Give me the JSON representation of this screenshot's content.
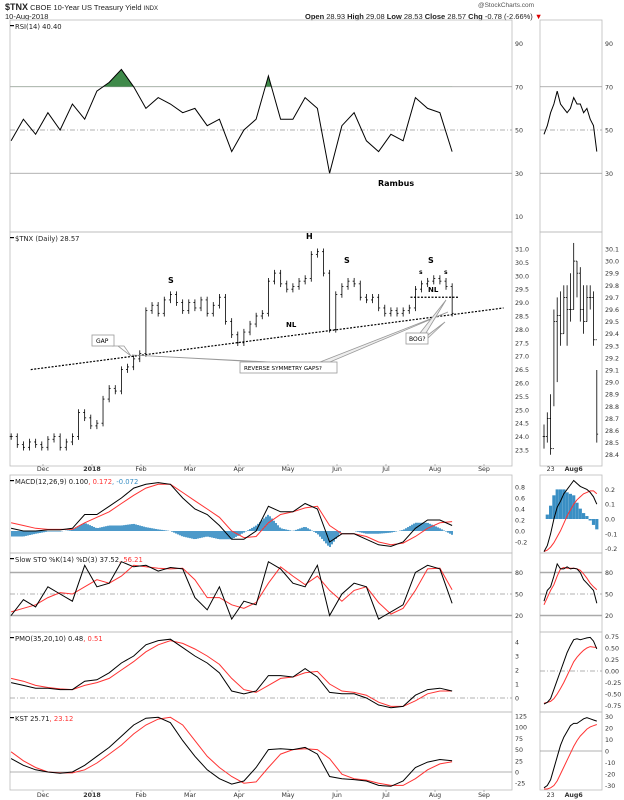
{
  "header": {
    "symbol": "$TNX",
    "name": "CBOE 10-Year US Treasury Yield",
    "exchange": "INDX",
    "date": "10-Aug-2018",
    "brand": "@StockCharts.com",
    "open_label": "Open",
    "open": "28.93",
    "high_label": "High",
    "high": "29.08",
    "low_label": "Low",
    "low": "28.53",
    "close_label": "Close",
    "close": "28.57",
    "chg_label": "Chg",
    "chg": "-0.78 (-2.66%)",
    "down_arrow": "▼"
  },
  "colors": {
    "black": "#000000",
    "red": "#ff3333",
    "hist": "#3a8fc4",
    "grid": "#999999",
    "rsi_fill": "#3f8a4a"
  },
  "annotations": {
    "rambus": "Rambus",
    "H": "H",
    "S_left": "S",
    "S_right_main": "S",
    "S_right": "S",
    "s_small_left": "s",
    "s_small_right": "s",
    "NL": "NL",
    "NL_small": "NL",
    "gap": "GAP",
    "reverse": "REVERSE SYMMETRY GAPS?",
    "bog": "BOG?"
  },
  "x_axis": {
    "labels": [
      {
        "m": 0,
        "t": "Dec"
      },
      {
        "m": 1,
        "t": "2018",
        "bold": true
      },
      {
        "m": 2,
        "t": "Feb"
      },
      {
        "m": 3,
        "t": "Mar"
      },
      {
        "m": 4,
        "t": "Apr"
      },
      {
        "m": 5,
        "t": "May"
      },
      {
        "m": 6,
        "t": "Jun"
      },
      {
        "m": 7,
        "t": "Jul"
      },
      {
        "m": 8,
        "t": "Aug"
      },
      {
        "m": 9,
        "t": "Sep"
      }
    ],
    "right_labels": [
      {
        "i": 2,
        "t": "23"
      },
      {
        "i": 9,
        "t": "Aug6",
        "bold": true
      }
    ]
  },
  "chart_data": [
    {
      "type": "line",
      "key": "rsi",
      "title": "RSI(14) 40.40",
      "yticks": [
        90,
        70,
        50,
        30,
        10
      ],
      "yticks_right": [
        90,
        70,
        50,
        30
      ],
      "ref_lines": [
        {
          "v": 70,
          "style": "solid"
        },
        {
          "v": 50,
          "style": "dashdot"
        },
        {
          "v": 30,
          "style": "solid"
        }
      ],
      "x_start": -0.65,
      "x_step": 0.25,
      "series": [
        {
          "name": "RSI",
          "color": "#000000",
          "values": [
            45,
            55,
            48,
            58,
            50,
            62,
            55,
            68,
            72,
            78,
            70,
            60,
            65,
            62,
            58,
            60,
            52,
            55,
            40,
            50,
            55,
            75,
            55,
            55,
            65,
            60,
            30,
            52,
            58,
            45,
            40,
            48,
            45,
            65,
            60,
            58,
            40
          ]
        }
      ],
      "right_series": [
        {
          "name": "RSI",
          "color": "#000000",
          "values": [
            48,
            52,
            58,
            62,
            68,
            62,
            60,
            58,
            60,
            65,
            62,
            62,
            58,
            60,
            55,
            52,
            40
          ]
        }
      ]
    },
    {
      "type": "ohlc",
      "key": "price",
      "title": "$TNX (Daily) 28.57",
      "yticks": [
        "31.0",
        "30.5",
        "30.0",
        "29.5",
        "29.0",
        "28.5",
        "28.0",
        "27.5",
        "27.0",
        "26.5",
        "26.0",
        "25.5",
        "25.0",
        "24.5",
        "24.0",
        "23.5"
      ],
      "yticks_right": [
        "30.1",
        "30.0",
        "29.9",
        "29.8",
        "29.7",
        "29.6",
        "29.5",
        "29.4",
        "29.3",
        "29.2",
        "29.1",
        "29.0",
        "28.9",
        "28.8",
        "28.7",
        "28.6",
        "28.5",
        "28.4"
      ],
      "x_start": -0.65,
      "x_step": 0.125,
      "closes": [
        24.0,
        23.7,
        23.6,
        23.8,
        23.7,
        23.6,
        23.9,
        24.0,
        23.6,
        23.8,
        24.0,
        24.9,
        24.7,
        24.4,
        24.5,
        25.4,
        25.8,
        25.7,
        26.5,
        26.6,
        26.9,
        27.1,
        28.7,
        28.9,
        28.6,
        29.1,
        29.3,
        29.0,
        28.7,
        29.0,
        28.8,
        29.1,
        28.6,
        28.9,
        29.2,
        28.3,
        27.8,
        27.5,
        27.9,
        28.2,
        28.5,
        28.6,
        29.8,
        30.1,
        29.7,
        29.5,
        29.6,
        29.8,
        29.9,
        30.8,
        30.9,
        30.1,
        28.0,
        29.3,
        29.6,
        29.8,
        29.7,
        29.2,
        29.1,
        29.2,
        28.8,
        28.6,
        28.7,
        28.6,
        28.7,
        28.8,
        29.5,
        29.7,
        29.8,
        29.9,
        29.8,
        29.6,
        28.6
      ],
      "neckline": {
        "from": [
          -0.25,
          26.5
        ],
        "to": [
          9.4,
          28.8
        ]
      },
      "small_neckline": {
        "from": [
          7.5,
          29.2
        ],
        "to": [
          8.5,
          29.2
        ]
      },
      "right_bars": [
        [
          28.45,
          28.65,
          28.55
        ],
        [
          28.5,
          28.75,
          28.7
        ],
        [
          28.4,
          28.9,
          28.45
        ],
        [
          28.8,
          29.6,
          29.5
        ],
        [
          29.0,
          29.7,
          29.55
        ],
        [
          29.3,
          29.75,
          29.4
        ],
        [
          29.4,
          29.8,
          29.7
        ],
        [
          29.3,
          29.8,
          29.6
        ],
        [
          29.5,
          29.9,
          29.6
        ],
        [
          29.6,
          30.15,
          30.0
        ],
        [
          29.7,
          30.0,
          29.9
        ],
        [
          29.5,
          29.95,
          29.6
        ],
        [
          29.4,
          29.8,
          29.5
        ],
        [
          29.5,
          29.8,
          29.7
        ],
        [
          29.6,
          29.8,
          29.7
        ],
        [
          29.3,
          29.75,
          29.35
        ],
        [
          28.5,
          29.1,
          28.57
        ]
      ]
    },
    {
      "type": "line",
      "key": "macd",
      "title_parts": [
        "MACD(12,26,9) 0.100",
        ", 0.172",
        ", -0.072"
      ],
      "yticks": [
        "0.8",
        "0.6",
        "0.4",
        "0.2",
        "0.0",
        "-0.2"
      ],
      "yticks_right": [
        "0.2",
        "0.1",
        "0.0",
        "-0.1",
        "-0.2"
      ],
      "x_start": -0.65,
      "x_step": 0.25,
      "series": [
        {
          "name": "MACD",
          "color": "#000000",
          "values": [
            0.05,
            0.0,
            0.0,
            0.02,
            0.02,
            0.05,
            0.3,
            0.3,
            0.45,
            0.6,
            0.78,
            0.85,
            0.88,
            0.85,
            0.6,
            0.4,
            0.3,
            0.1,
            -0.15,
            -0.15,
            0.0,
            0.45,
            0.35,
            0.35,
            0.5,
            0.4,
            -0.2,
            -0.05,
            -0.05,
            -0.15,
            -0.25,
            -0.28,
            -0.2,
            0.05,
            0.2,
            0.2,
            0.1
          ]
        },
        {
          "name": "Signal",
          "color": "#ff3333",
          "values": [
            0.15,
            0.1,
            0.05,
            0.03,
            0.03,
            0.03,
            0.15,
            0.25,
            0.35,
            0.5,
            0.65,
            0.78,
            0.85,
            0.85,
            0.7,
            0.55,
            0.4,
            0.25,
            0.0,
            -0.12,
            -0.1,
            0.15,
            0.3,
            0.35,
            0.42,
            0.45,
            0.1,
            -0.05,
            -0.05,
            -0.1,
            -0.2,
            -0.25,
            -0.22,
            -0.1,
            0.05,
            0.15,
            0.17
          ]
        }
      ],
      "right_series": [
        {
          "name": "MACD",
          "color": "#000000",
          "values": [
            -0.22,
            -0.18,
            -0.1,
            0.0,
            0.08,
            0.12,
            0.17,
            0.2,
            0.23,
            0.26,
            0.24,
            0.22,
            0.21,
            0.2,
            0.18,
            0.15,
            0.1
          ]
        },
        {
          "name": "Signal",
          "color": "#ff3333",
          "values": [
            -0.22,
            -0.21,
            -0.19,
            -0.16,
            -0.12,
            -0.08,
            -0.03,
            0.02,
            0.06,
            0.1,
            0.13,
            0.15,
            0.17,
            0.18,
            0.19,
            0.19,
            0.17
          ]
        }
      ],
      "histogram": "MACD minus Signal"
    },
    {
      "type": "line",
      "key": "sto",
      "title_parts": [
        "Slow STO %K(14) %D(3) 37.52",
        ", 56.21"
      ],
      "yticks": [
        "80",
        "50",
        "20"
      ],
      "yticks_right": [
        "80",
        "50",
        "20"
      ],
      "ref_lines": [
        {
          "v": 80,
          "style": "thick"
        },
        {
          "v": 50,
          "style": "dashdot"
        },
        {
          "v": 20,
          "style": "thick"
        }
      ],
      "x_start": -0.65,
      "x_step": 0.25,
      "series": [
        {
          "name": "%K",
          "color": "#000000",
          "values": [
            20,
            42,
            32,
            60,
            50,
            40,
            90,
            60,
            65,
            95,
            88,
            90,
            82,
            87,
            85,
            45,
            28,
            60,
            15,
            40,
            35,
            95,
            85,
            65,
            60,
            90,
            20,
            50,
            65,
            60,
            15,
            25,
            35,
            80,
            90,
            85,
            37
          ]
        },
        {
          "name": "%D",
          "color": "#ff3333",
          "values": [
            25,
            30,
            35,
            45,
            52,
            50,
            60,
            70,
            65,
            75,
            90,
            88,
            86,
            85,
            86,
            70,
            45,
            45,
            35,
            30,
            38,
            65,
            88,
            75,
            63,
            75,
            55,
            40,
            55,
            60,
            38,
            22,
            30,
            55,
            85,
            86,
            56
          ]
        }
      ],
      "right_series": [
        {
          "name": "%K",
          "color": "#000000",
          "values": [
            40,
            55,
            60,
            75,
            92,
            85,
            85,
            88,
            85,
            86,
            85,
            80,
            70,
            65,
            60,
            55,
            37
          ]
        },
        {
          "name": "%D",
          "color": "#ff3333",
          "values": [
            35,
            45,
            55,
            63,
            75,
            85,
            87,
            86,
            86,
            86,
            85,
            83,
            78,
            72,
            65,
            60,
            56
          ]
        }
      ]
    },
    {
      "type": "line",
      "key": "pmo",
      "title_parts": [
        "PMO(35,20,10) 0.48",
        ", 0.51"
      ],
      "yticks": [
        "4",
        "3",
        "2",
        "1",
        "0"
      ],
      "yticks_right": [
        "0.75",
        "0.50",
        "0.25",
        "0.00",
        "-0.25",
        "-0.50",
        "-0.75"
      ],
      "ref_lines": [
        {
          "v": 0,
          "style": "dashdot"
        }
      ],
      "x_start": -0.65,
      "x_step": 0.25,
      "series": [
        {
          "name": "PMO",
          "color": "#000000",
          "values": [
            1.1,
            0.9,
            0.7,
            0.7,
            0.6,
            0.6,
            1.2,
            1.3,
            1.8,
            2.5,
            3.0,
            3.8,
            4.1,
            4.2,
            3.6,
            3.0,
            2.5,
            1.8,
            0.5,
            0.3,
            0.5,
            1.6,
            1.6,
            1.5,
            2.1,
            1.5,
            0.4,
            0.3,
            0.3,
            0.0,
            -0.5,
            -0.7,
            -0.6,
            0.2,
            0.6,
            0.7,
            0.5
          ]
        },
        {
          "name": "Signal",
          "color": "#ff3333",
          "values": [
            1.4,
            1.2,
            0.9,
            0.75,
            0.65,
            0.6,
            0.9,
            1.1,
            1.4,
            2.0,
            2.6,
            3.3,
            3.8,
            4.1,
            3.9,
            3.5,
            3.0,
            2.4,
            1.4,
            0.6,
            0.4,
            0.9,
            1.4,
            1.5,
            1.8,
            1.9,
            1.0,
            0.5,
            0.4,
            0.2,
            -0.3,
            -0.6,
            -0.6,
            -0.2,
            0.3,
            0.5,
            0.5
          ]
        }
      ],
      "right_series": [
        {
          "name": "PMO",
          "color": "#000000",
          "values": [
            -0.72,
            -0.68,
            -0.6,
            -0.4,
            -0.2,
            0.0,
            0.2,
            0.4,
            0.55,
            0.68,
            0.7,
            0.68,
            0.7,
            0.72,
            0.73,
            0.65,
            0.48
          ]
        },
        {
          "name": "Signal",
          "color": "#ff3333",
          "values": [
            -0.7,
            -0.68,
            -0.66,
            -0.6,
            -0.5,
            -0.38,
            -0.25,
            -0.1,
            0.05,
            0.2,
            0.3,
            0.38,
            0.45,
            0.5,
            0.53,
            0.52,
            0.51
          ]
        }
      ]
    },
    {
      "type": "line",
      "key": "kst",
      "title_parts": [
        "KST 25.71",
        ", 23.12"
      ],
      "yticks": [
        "125",
        "100",
        "75",
        "50",
        "25",
        "0",
        "-25"
      ],
      "yticks_right": [
        "30",
        "20",
        "10",
        "0",
        "-10",
        "-20",
        "-30"
      ],
      "ref_lines": [
        {
          "v": 0,
          "style": "solid"
        }
      ],
      "x_start": -0.65,
      "x_step": 0.25,
      "series": [
        {
          "name": "KST",
          "color": "#000000",
          "values": [
            30,
            15,
            5,
            0,
            -3,
            0,
            15,
            35,
            55,
            80,
            105,
            120,
            122,
            110,
            70,
            35,
            5,
            -15,
            -27,
            -20,
            10,
            50,
            52,
            50,
            55,
            40,
            -10,
            -15,
            -17,
            -20,
            -30,
            -32,
            -20,
            10,
            22,
            28,
            25
          ]
        },
        {
          "name": "Signal",
          "color": "#ff3333",
          "values": [
            45,
            25,
            10,
            0,
            -2,
            -2,
            5,
            20,
            40,
            60,
            85,
            105,
            118,
            122,
            105,
            70,
            35,
            10,
            -10,
            -25,
            -22,
            10,
            40,
            50,
            52,
            50,
            30,
            -5,
            -15,
            -18,
            -25,
            -30,
            -30,
            -15,
            5,
            18,
            23
          ]
        }
      ],
      "right_series": [
        {
          "name": "KST",
          "color": "#000000",
          "values": [
            -32,
            -30,
            -25,
            -15,
            -5,
            5,
            12,
            17,
            22,
            24,
            24,
            26,
            28,
            29,
            28,
            27,
            26
          ]
        },
        {
          "name": "Signal",
          "color": "#ff3333",
          "values": [
            -33,
            -33,
            -32,
            -30,
            -26,
            -20,
            -14,
            -8,
            -2,
            4,
            9,
            13,
            16,
            19,
            21,
            22,
            23
          ]
        }
      ]
    }
  ]
}
